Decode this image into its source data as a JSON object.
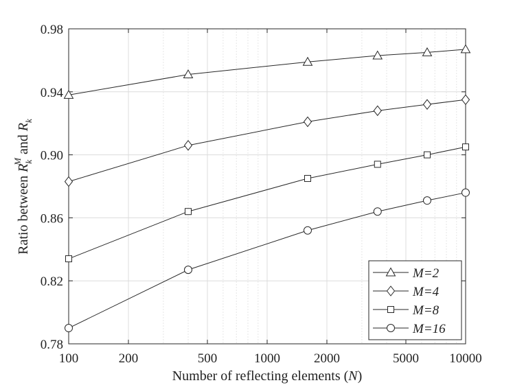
{
  "chart_data": {
    "type": "line",
    "xlabel": "Number of reflecting elements (N)",
    "xlabel_parts": {
      "pre": "Number of reflecting elements (",
      "var": "N",
      "post": ")"
    },
    "ylabel": "Ratio between R_k^M and R_k",
    "ylabel_parts": {
      "pre": "Ratio between ",
      "R": "R",
      "k": "k",
      "M": "M",
      "and": " and "
    },
    "x_scale": "log",
    "xlim": [
      100,
      10000
    ],
    "ylim": [
      0.78,
      0.98
    ],
    "x_ticks": [
      100,
      200,
      500,
      1000,
      2000,
      5000,
      10000
    ],
    "y_ticks": [
      0.78,
      0.82,
      0.86,
      0.9,
      0.94,
      0.98
    ],
    "y_tick_labels": [
      "0.78",
      "0.82",
      "0.86",
      "0.90",
      "0.94",
      "0.98"
    ],
    "grid": true,
    "legend_position": "bottom-right",
    "x": [
      100,
      400,
      1600,
      3600,
      6400,
      10000
    ],
    "series": [
      {
        "name": "M=2",
        "marker": "triangle",
        "values": [
          0.938,
          0.951,
          0.959,
          0.963,
          0.965,
          0.967
        ]
      },
      {
        "name": "M=4",
        "marker": "diamond",
        "values": [
          0.883,
          0.906,
          0.921,
          0.928,
          0.932,
          0.935
        ]
      },
      {
        "name": "M=8",
        "marker": "square",
        "values": [
          0.834,
          0.864,
          0.885,
          0.894,
          0.9,
          0.905
        ]
      },
      {
        "name": "M=16",
        "marker": "circle",
        "values": [
          0.79,
          0.827,
          0.852,
          0.864,
          0.871,
          0.876
        ]
      }
    ]
  }
}
